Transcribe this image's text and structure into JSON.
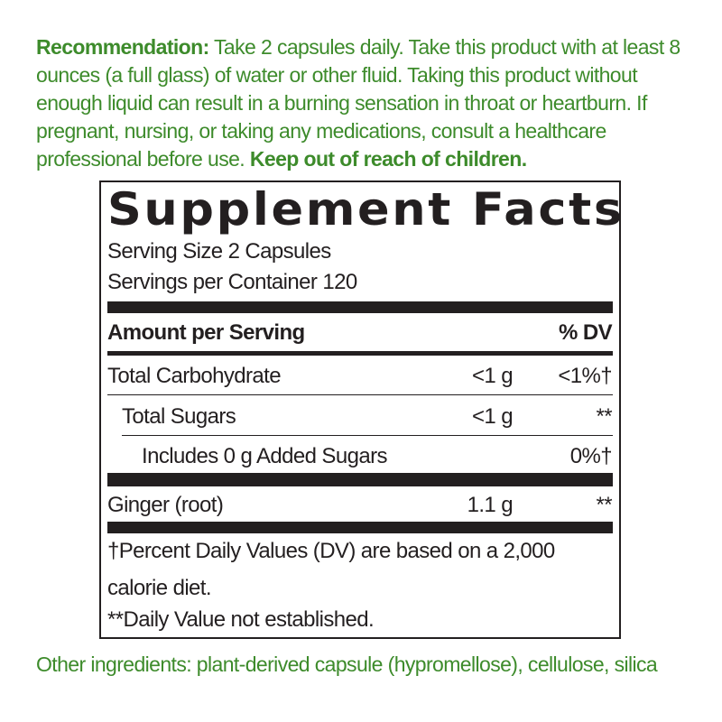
{
  "recommendation": {
    "label": "Recommendation:",
    "text": " Take 2 capsules daily. Take this product with at least 8 ounces (a full glass) of water or other fluid. Taking this product without enough liquid can result in a burning sensation in throat or heartburn. If pregnant, nursing, or taking any medications, consult a healthcare professional before use. ",
    "warning": "Keep out of reach of children."
  },
  "facts": {
    "title": "Supplement Facts",
    "serving_size": "Serving Size 2 Capsules",
    "servings_per_container": "Servings per Container 120",
    "header_amount": "Amount per Serving",
    "header_dv": "% DV",
    "rows": [
      {
        "name": "Total Carbohydrate",
        "amount": "<1 g",
        "dv": "<1%†"
      },
      {
        "name": "Total Sugars",
        "amount": "<1 g",
        "dv": "**"
      },
      {
        "name": "Includes 0 g Added Sugars",
        "amount": "",
        "dv": "0%†"
      },
      {
        "name": "Ginger (root)",
        "amount": "1.1 g",
        "dv": "**"
      }
    ],
    "footnote_1_line1": "†Percent Daily Values (DV) are based on a 2,000",
    "footnote_1_line2": "calorie diet.",
    "footnote_2": "**Daily Value not established."
  },
  "other_ingredients": "Other ingredients: plant-derived capsule (hypromellose), cellulose, silica",
  "colors": {
    "text_green": "#3d8b2b",
    "label_black": "#231f20"
  }
}
